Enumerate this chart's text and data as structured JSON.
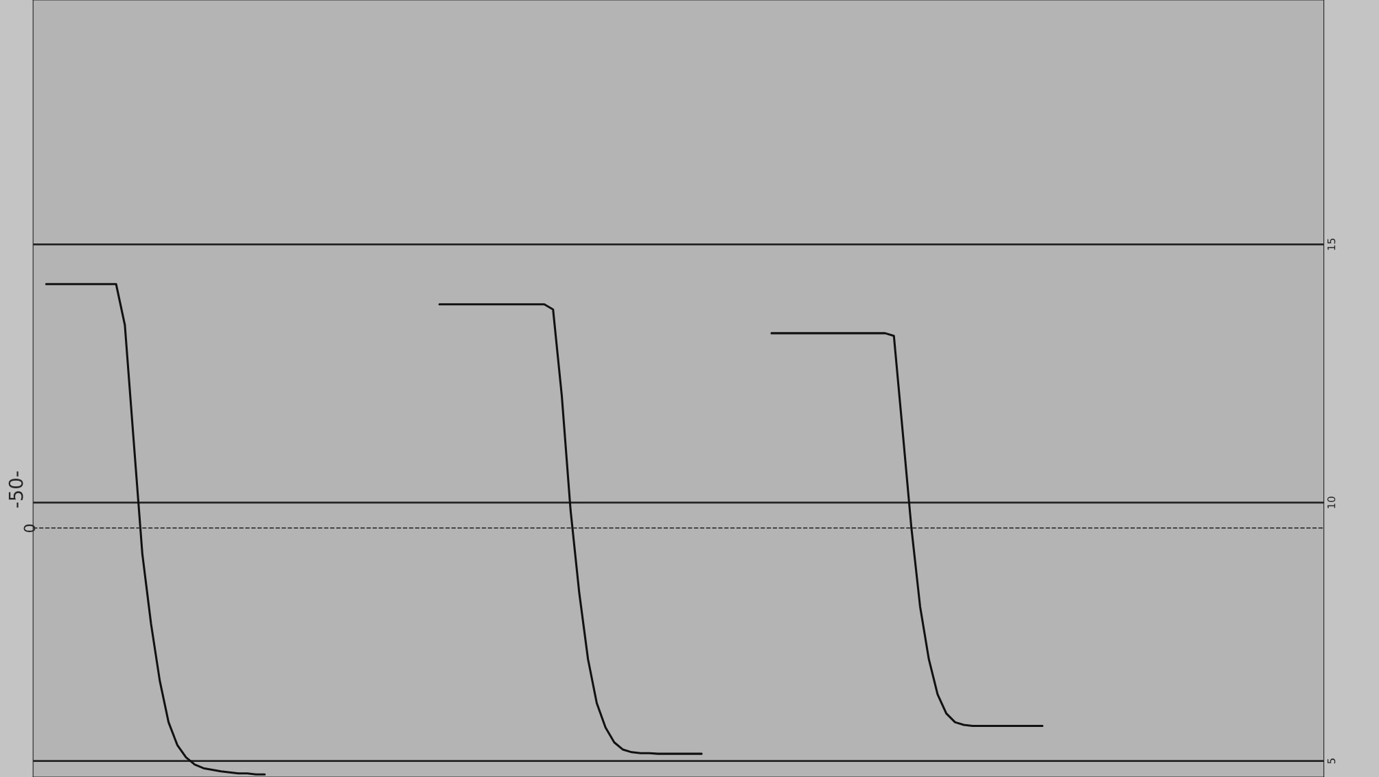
{
  "chart_data": {
    "type": "line",
    "categories": [
      null,
      null,
      null,
      null,
      null,
      null,
      null,
      null,
      null,
      null,
      null,
      null,
      null,
      null,
      null,
      null,
      null,
      null,
      null,
      null,
      null,
      null,
      null,
      null,
      null,
      null,
      null,
      null,
      null,
      null,
      null,
      null,
      null,
      null,
      null,
      null,
      null,
      null,
      null,
      null,
      null,
      null,
      null,
      null,
      null,
      null,
      null,
      null,
      null,
      null,
      null,
      null,
      null,
      null,
      null,
      null,
      null,
      null,
      null,
      null,
      null,
      null,
      null,
      null,
      null,
      null,
      null,
      null,
      null,
      null,
      null,
      null,
      null,
      null,
      null,
      null,
      null,
      null,
      null,
      null,
      null,
      null,
      null,
      null,
      null,
      null,
      null,
      null,
      null,
      null,
      null,
      null,
      null,
      null,
      null,
      null,
      null,
      null,
      null,
      null,
      null,
      null,
      null,
      null,
      null,
      null,
      null,
      null,
      null,
      null,
      null,
      null,
      null,
      null,
      null,
      null,
      null,
      null,
      null,
      null,
      null,
      null,
      null,
      null,
      null,
      null,
      null,
      null,
      null,
      null,
      null,
      null,
      null,
      null,
      null,
      null,
      null,
      null,
      null,
      null,
      null,
      null,
      null,
      null,
      null,
      null,
      null
    ],
    "series": [
      {
        "color": "#111111",
        "values": [
          null,
          14.23,
          14.23,
          14.23,
          14.23,
          14.23,
          14.23,
          14.23,
          14.23,
          14.23,
          13.44,
          11.22,
          9.01,
          7.65,
          6.55,
          5.75,
          5.31,
          5.07,
          4.93,
          4.86,
          4.83,
          4.8,
          4.78,
          4.76,
          4.76,
          4.74,
          4.74,
          null,
          null,
          null,
          null,
          null,
          null,
          null,
          null,
          null,
          null,
          null,
          null,
          null,
          null,
          null,
          null,
          null,
          null,
          null,
          13.84,
          13.84,
          13.84,
          13.84,
          13.84,
          13.84,
          13.84,
          13.84,
          13.84,
          13.84,
          13.84,
          13.84,
          13.84,
          13.74,
          12.07,
          9.86,
          8.25,
          6.97,
          6.12,
          5.65,
          5.36,
          5.22,
          5.17,
          5.15,
          5.15,
          5.14,
          5.14,
          5.14,
          5.14,
          5.14,
          5.14,
          null,
          null,
          null,
          null,
          null,
          null,
          null,
          13.28,
          13.28,
          13.28,
          13.28,
          13.28,
          13.28,
          13.28,
          13.28,
          13.28,
          13.28,
          13.28,
          13.28,
          13.28,
          13.28,
          13.23,
          11.39,
          9.52,
          7.99,
          6.97,
          6.29,
          5.92,
          5.75,
          5.7,
          5.68,
          5.68,
          5.68,
          5.68,
          5.68,
          5.68,
          5.68,
          5.68,
          5.68,
          null,
          null,
          null,
          null,
          null,
          null,
          null,
          null,
          null,
          null,
          null,
          null,
          null,
          null,
          null,
          null,
          null,
          null,
          null,
          null,
          null,
          null,
          null,
          null,
          null,
          null,
          null,
          null,
          null,
          null,
          null
        ]
      }
    ],
    "ylim": [
      4.69,
      19.73
    ],
    "yticks": [
      5,
      10,
      15
    ],
    "grid": "y",
    "tick_labels": "y",
    "line_style": "solid",
    "marker": "none",
    "ref_lines": [
      {
        "axis": "y",
        "value": 9.51,
        "line_style": "dashed",
        "color": "#333333"
      }
    ],
    "annotations": [
      "-50-",
      "0"
    ]
  }
}
